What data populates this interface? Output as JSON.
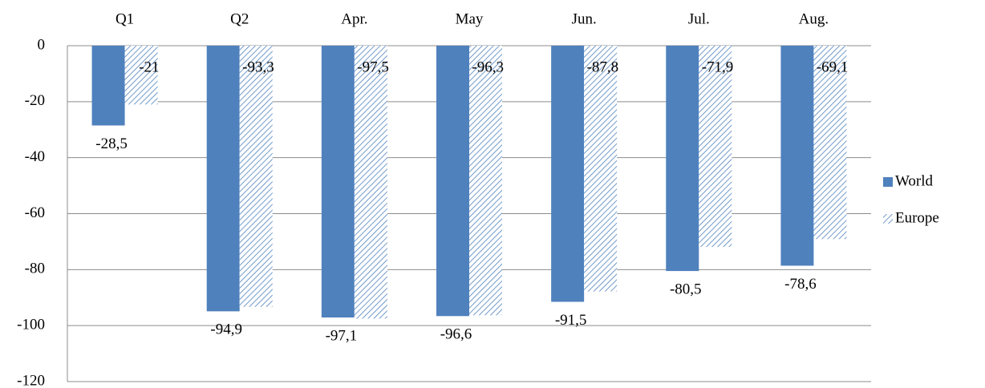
{
  "chart_data": {
    "type": "bar",
    "categories": [
      "Q1",
      "Q2",
      "Apr.",
      "May",
      "Jun.",
      "Jul.",
      "Aug."
    ],
    "series": [
      {
        "name": "World",
        "color": "#4f81bd",
        "fill": "solid",
        "values": [
          -28.5,
          -94.9,
          -97.1,
          -96.6,
          -91.5,
          -80.5,
          -78.6
        ],
        "value_labels": [
          "-28,5",
          "-94,9",
          "-97,1",
          "-96,6",
          "-91,5",
          "-80,5",
          "-78,6"
        ]
      },
      {
        "name": "Europe",
        "color": "#4f81bd",
        "fill": "hatch",
        "values": [
          -21,
          -93.3,
          -97.5,
          -96.3,
          -87.8,
          -71.9,
          -69.1
        ],
        "value_labels": [
          "-21",
          "-93,3",
          "-97,5",
          "-96,3",
          "-87,8",
          "-71,9",
          "-69,1"
        ]
      }
    ],
    "ylim": [
      -120,
      0
    ],
    "yticks": [
      0,
      -20,
      -40,
      -60,
      -80,
      -100,
      -120
    ],
    "grid": true,
    "legend": "right"
  }
}
